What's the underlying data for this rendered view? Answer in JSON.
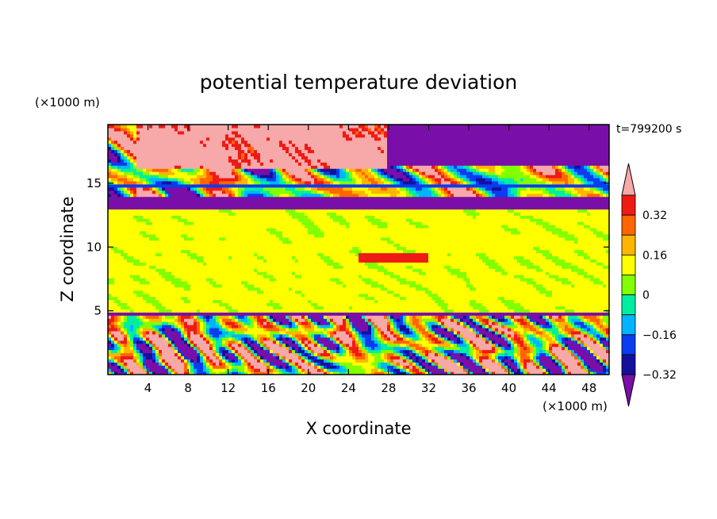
{
  "chart_data": {
    "type": "heatmap",
    "title": "potential temperature deviation",
    "xlabel": "X coordinate",
    "ylabel": "Z coordinate",
    "x_unit": "(×1000 m)",
    "y_unit": "(×1000 m)",
    "time_label": "t=799200 s",
    "xlim": [
      0,
      50
    ],
    "ylim": [
      0,
      19.6
    ],
    "x_ticks": [
      4,
      8,
      12,
      16,
      20,
      24,
      28,
      32,
      36,
      40,
      44,
      48
    ],
    "y_ticks": [
      5,
      10,
      15
    ],
    "colorbar": {
      "levels": [
        -0.4,
        -0.32,
        -0.24,
        -0.16,
        -0.08,
        0,
        0.08,
        0.16,
        0.24,
        0.32,
        0.4
      ],
      "labels": [
        "0.32",
        "0.16",
        "0",
        "−0.16",
        "−0.32"
      ],
      "label_values": [
        0.32,
        0.16,
        0,
        -0.16,
        -0.32
      ],
      "colors": [
        "#7a0ea8",
        "#15109c",
        "#0a3cf0",
        "#00b4ff",
        "#00eea0",
        "#82ff00",
        "#ffff00",
        "#ffb400",
        "#ff6600",
        "#ee1a14",
        "#f7a8a8"
      ],
      "extend": "both"
    },
    "bands": [
      {
        "z_min": 13.0,
        "z_max": 19.6,
        "description_values": [
          -0.4,
          0.4
        ]
      },
      {
        "z_min": 5.0,
        "z_max": 13.0,
        "description_values": [
          -0.04,
          0.04
        ]
      },
      {
        "z_min": 0.0,
        "z_max": 5.0,
        "description_values": [
          -0.4,
          0.4
        ]
      }
    ]
  }
}
